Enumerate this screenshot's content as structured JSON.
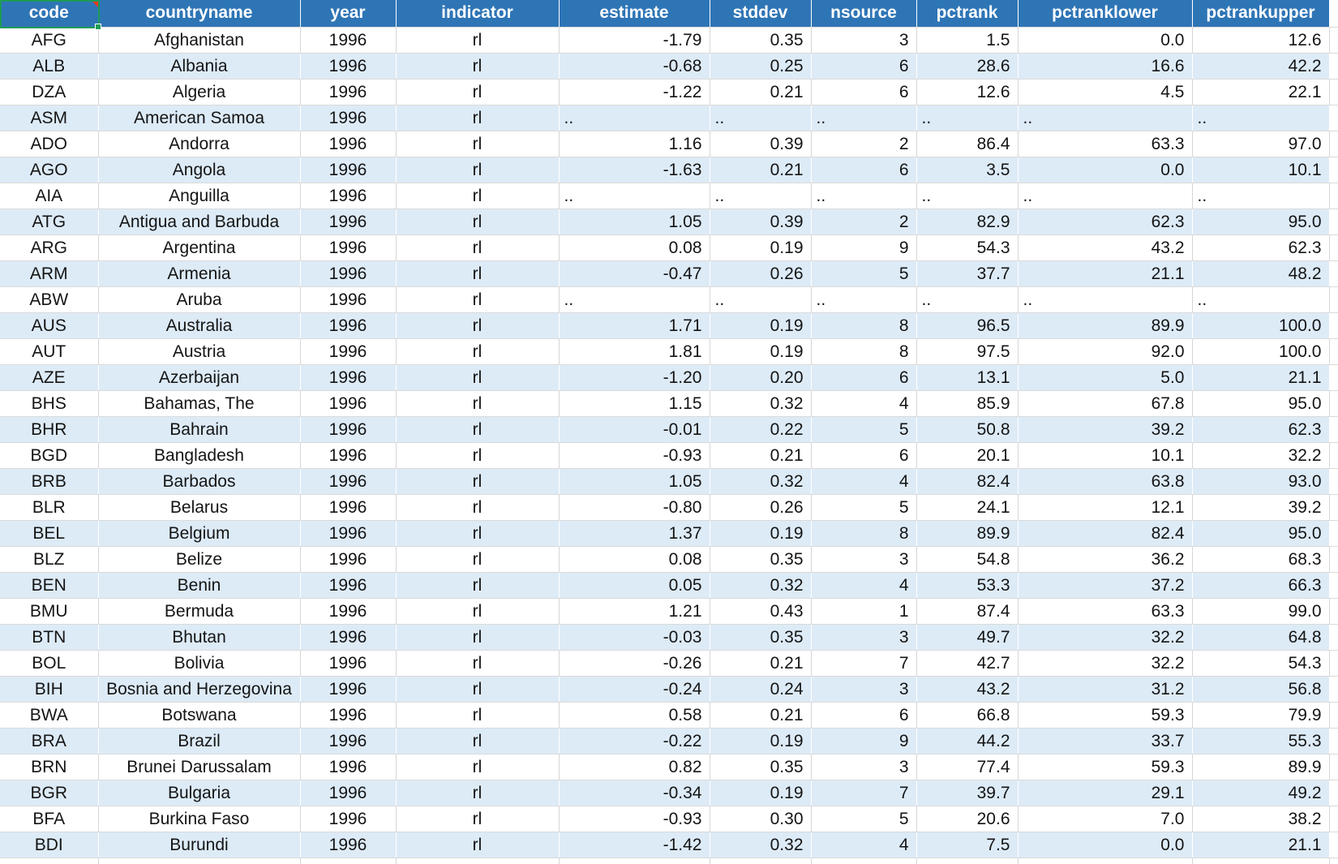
{
  "sheet": {
    "columns": [
      {
        "key": "code",
        "label": "code",
        "align": "c"
      },
      {
        "key": "countryname",
        "label": "countryname",
        "align": "c"
      },
      {
        "key": "year",
        "label": "year",
        "align": "c"
      },
      {
        "key": "indicator",
        "label": "indicator",
        "align": "c"
      },
      {
        "key": "estimate",
        "label": "estimate",
        "align": "r"
      },
      {
        "key": "stddev",
        "label": "stddev",
        "align": "r"
      },
      {
        "key": "nsource",
        "label": "nsource",
        "align": "r"
      },
      {
        "key": "pctrank",
        "label": "pctrank",
        "align": "r"
      },
      {
        "key": "pctranklower",
        "label": "pctranklower",
        "align": "r"
      },
      {
        "key": "pctrankupper",
        "label": "pctrankupper",
        "align": "r"
      }
    ],
    "na_value": "..",
    "rows": [
      [
        "AFG",
        "Afghanistan",
        "1996",
        "rl",
        "-1.79",
        "0.35",
        "3",
        "1.5",
        "0.0",
        "12.6"
      ],
      [
        "ALB",
        "Albania",
        "1996",
        "rl",
        "-0.68",
        "0.25",
        "6",
        "28.6",
        "16.6",
        "42.2"
      ],
      [
        "DZA",
        "Algeria",
        "1996",
        "rl",
        "-1.22",
        "0.21",
        "6",
        "12.6",
        "4.5",
        "22.1"
      ],
      [
        "ASM",
        "American Samoa",
        "1996",
        "rl",
        "..",
        "..",
        "..",
        "..",
        "..",
        ".."
      ],
      [
        "ADO",
        "Andorra",
        "1996",
        "rl",
        "1.16",
        "0.39",
        "2",
        "86.4",
        "63.3",
        "97.0"
      ],
      [
        "AGO",
        "Angola",
        "1996",
        "rl",
        "-1.63",
        "0.21",
        "6",
        "3.5",
        "0.0",
        "10.1"
      ],
      [
        "AIA",
        "Anguilla",
        "1996",
        "rl",
        "..",
        "..",
        "..",
        "..",
        "..",
        ".."
      ],
      [
        "ATG",
        "Antigua and Barbuda",
        "1996",
        "rl",
        "1.05",
        "0.39",
        "2",
        "82.9",
        "62.3",
        "95.0"
      ],
      [
        "ARG",
        "Argentina",
        "1996",
        "rl",
        "0.08",
        "0.19",
        "9",
        "54.3",
        "43.2",
        "62.3"
      ],
      [
        "ARM",
        "Armenia",
        "1996",
        "rl",
        "-0.47",
        "0.26",
        "5",
        "37.7",
        "21.1",
        "48.2"
      ],
      [
        "ABW",
        "Aruba",
        "1996",
        "rl",
        "..",
        "..",
        "..",
        "..",
        "..",
        ".."
      ],
      [
        "AUS",
        "Australia",
        "1996",
        "rl",
        "1.71",
        "0.19",
        "8",
        "96.5",
        "89.9",
        "100.0"
      ],
      [
        "AUT",
        "Austria",
        "1996",
        "rl",
        "1.81",
        "0.19",
        "8",
        "97.5",
        "92.0",
        "100.0"
      ],
      [
        "AZE",
        "Azerbaijan",
        "1996",
        "rl",
        "-1.20",
        "0.20",
        "6",
        "13.1",
        "5.0",
        "21.1"
      ],
      [
        "BHS",
        "Bahamas, The",
        "1996",
        "rl",
        "1.15",
        "0.32",
        "4",
        "85.9",
        "67.8",
        "95.0"
      ],
      [
        "BHR",
        "Bahrain",
        "1996",
        "rl",
        "-0.01",
        "0.22",
        "5",
        "50.8",
        "39.2",
        "62.3"
      ],
      [
        "BGD",
        "Bangladesh",
        "1996",
        "rl",
        "-0.93",
        "0.21",
        "6",
        "20.1",
        "10.1",
        "32.2"
      ],
      [
        "BRB",
        "Barbados",
        "1996",
        "rl",
        "1.05",
        "0.32",
        "4",
        "82.4",
        "63.8",
        "93.0"
      ],
      [
        "BLR",
        "Belarus",
        "1996",
        "rl",
        "-0.80",
        "0.26",
        "5",
        "24.1",
        "12.1",
        "39.2"
      ],
      [
        "BEL",
        "Belgium",
        "1996",
        "rl",
        "1.37",
        "0.19",
        "8",
        "89.9",
        "82.4",
        "95.0"
      ],
      [
        "BLZ",
        "Belize",
        "1996",
        "rl",
        "0.08",
        "0.35",
        "3",
        "54.8",
        "36.2",
        "68.3"
      ],
      [
        "BEN",
        "Benin",
        "1996",
        "rl",
        "0.05",
        "0.32",
        "4",
        "53.3",
        "37.2",
        "66.3"
      ],
      [
        "BMU",
        "Bermuda",
        "1996",
        "rl",
        "1.21",
        "0.43",
        "1",
        "87.4",
        "63.3",
        "99.0"
      ],
      [
        "BTN",
        "Bhutan",
        "1996",
        "rl",
        "-0.03",
        "0.35",
        "3",
        "49.7",
        "32.2",
        "64.8"
      ],
      [
        "BOL",
        "Bolivia",
        "1996",
        "rl",
        "-0.26",
        "0.21",
        "7",
        "42.7",
        "32.2",
        "54.3"
      ],
      [
        "BIH",
        "Bosnia and Herzegovina",
        "1996",
        "rl",
        "-0.24",
        "0.24",
        "3",
        "43.2",
        "31.2",
        "56.8"
      ],
      [
        "BWA",
        "Botswana",
        "1996",
        "rl",
        "0.58",
        "0.21",
        "6",
        "66.8",
        "59.3",
        "79.9"
      ],
      [
        "BRA",
        "Brazil",
        "1996",
        "rl",
        "-0.22",
        "0.19",
        "9",
        "44.2",
        "33.7",
        "55.3"
      ],
      [
        "BRN",
        "Brunei Darussalam",
        "1996",
        "rl",
        "0.82",
        "0.35",
        "3",
        "77.4",
        "59.3",
        "89.9"
      ],
      [
        "BGR",
        "Bulgaria",
        "1996",
        "rl",
        "-0.34",
        "0.19",
        "7",
        "39.7",
        "29.1",
        "49.2"
      ],
      [
        "BFA",
        "Burkina Faso",
        "1996",
        "rl",
        "-0.93",
        "0.30",
        "5",
        "20.6",
        "7.0",
        "38.2"
      ],
      [
        "BDI",
        "Burundi",
        "1996",
        "rl",
        "-1.42",
        "0.32",
        "4",
        "7.5",
        "0.0",
        "21.1"
      ]
    ],
    "selection": {
      "cell": "code",
      "has_note": true
    },
    "colors": {
      "header_bg": "#2E75B6",
      "stripe_bg": "#DDEBF7",
      "gridline": "#D6D6D6",
      "selection_border": "#1E9B57",
      "note_marker": "#E03B24"
    }
  }
}
